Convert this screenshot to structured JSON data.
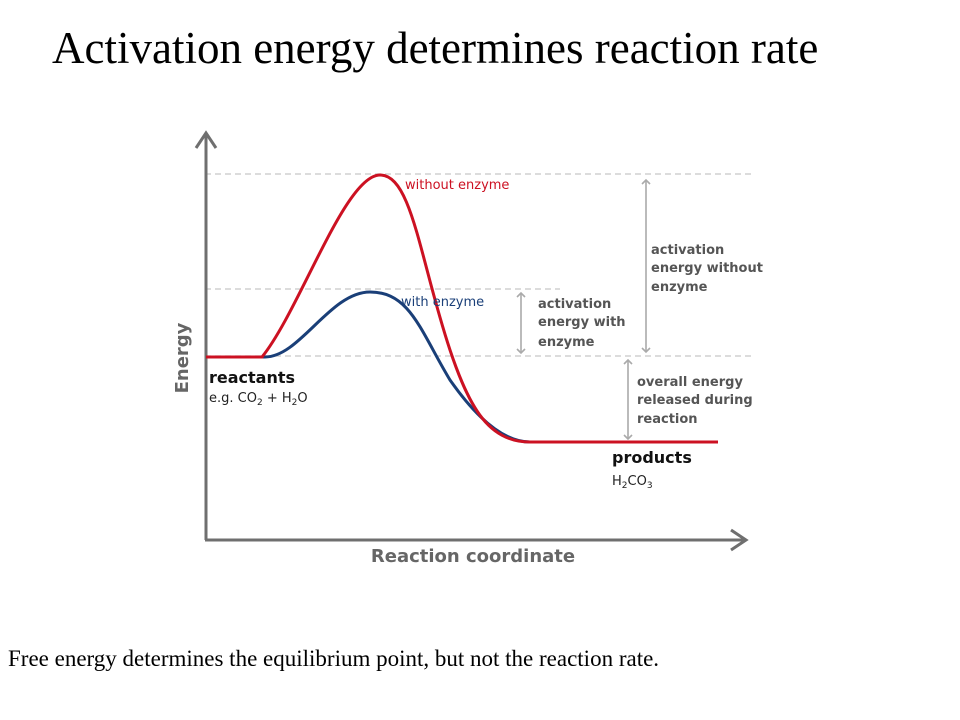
{
  "slide": {
    "title": "Activation energy determines reaction rate",
    "caption": "Free energy determines the equilibrium point, but not the reaction rate."
  },
  "diagram": {
    "axes": {
      "y_label": "Energy",
      "x_label": "Reaction coordinate"
    },
    "curves": {
      "without_enzyme": {
        "label": "without enzyme",
        "color": "#cc1122"
      },
      "with_enzyme": {
        "label": "with enzyme",
        "color": "#1a3f78"
      }
    },
    "reactants": {
      "label": "reactants",
      "example_prefix": "e.g. CO",
      "example_sub1": "2",
      "example_mid": " + H",
      "example_sub2": "2",
      "example_suffix": "O"
    },
    "products": {
      "label": "products",
      "formula_h": "H",
      "formula_sub1": "2",
      "formula_co": "CO",
      "formula_sub2": "3"
    },
    "annotations": {
      "activation_without": [
        "activation",
        "energy without",
        "enzyme"
      ],
      "activation_with": [
        "activation",
        "energy with",
        "enzyme"
      ],
      "overall_released": [
        "overall energy",
        "released during",
        "reaction"
      ]
    },
    "colors": {
      "axis": "#666666",
      "guide": "#c8c8c8",
      "annotation": "#555555",
      "arrow": "#aaaaaa"
    }
  }
}
